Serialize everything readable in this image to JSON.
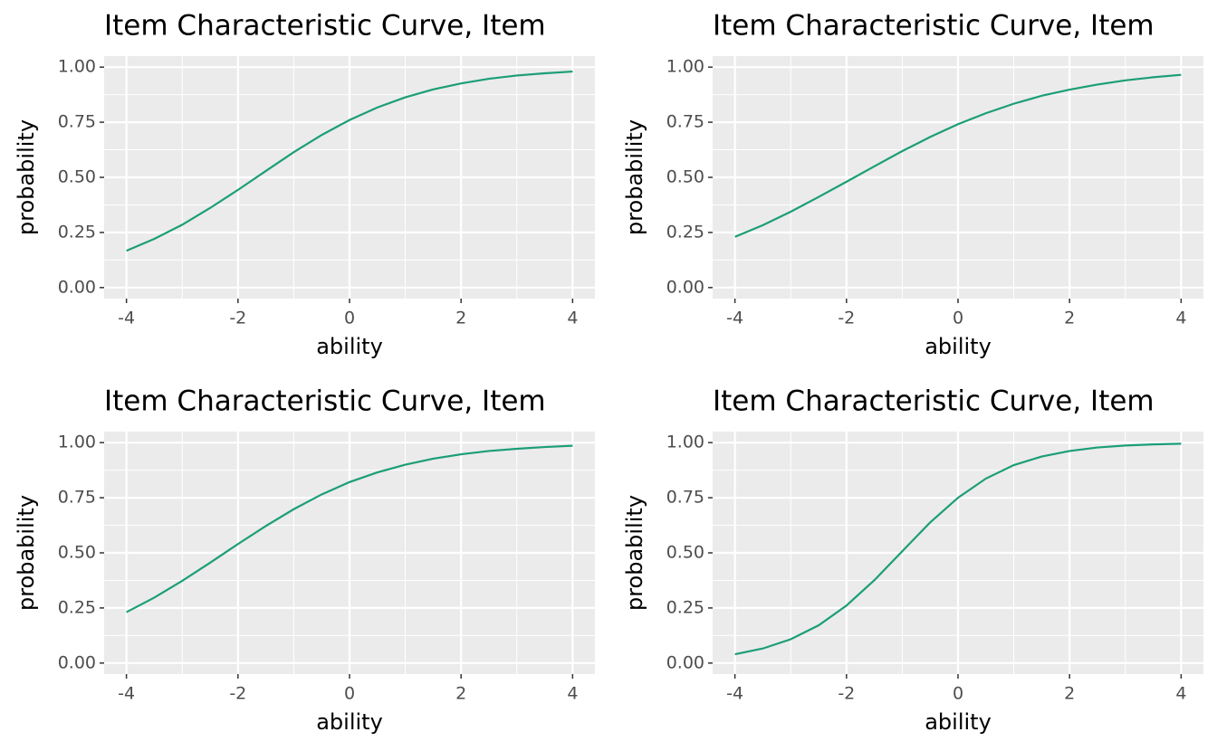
{
  "chart_data": [
    {
      "type": "line",
      "title": "Item Characteristic Curve, Item",
      "x_label": "ability",
      "y_label": "probability",
      "x": [
        -4,
        -3.5,
        -3,
        -2.5,
        -2,
        -1.5,
        -1,
        -0.5,
        0,
        0.5,
        1,
        1.5,
        2,
        2.5,
        3,
        3.5,
        4
      ],
      "series": [
        {
          "color": "#1b9e77",
          "values": [
            0.167,
            0.221,
            0.285,
            0.361,
            0.443,
            0.529,
            0.614,
            0.692,
            0.76,
            0.817,
            0.863,
            0.899,
            0.926,
            0.947,
            0.962,
            0.972,
            0.98
          ]
        }
      ],
      "xlim": [
        -4.4,
        4.4
      ],
      "xticks": [
        -4,
        -2,
        0,
        2,
        4
      ],
      "ylim": [
        -0.05,
        1.05
      ],
      "yticks": [
        {
          "value": 0,
          "label": "0.00"
        },
        {
          "value": 0.25,
          "label": "0.25"
        },
        {
          "value": 0.5,
          "label": "0.50"
        },
        {
          "value": 0.75,
          "label": "0.75"
        },
        {
          "value": 1,
          "label": "1.00"
        }
      ],
      "grid": true
    },
    {
      "type": "line",
      "title": "Item Characteristic Curve, Item",
      "x_label": "ability",
      "y_label": "probability",
      "x": [
        -4,
        -3.5,
        -3,
        -2.5,
        -2,
        -1.5,
        -1,
        -0.5,
        0,
        0.5,
        1,
        1.5,
        2,
        2.5,
        3,
        3.5,
        4
      ],
      "series": [
        {
          "color": "#1b9e77",
          "values": [
            0.23,
            0.283,
            0.344,
            0.411,
            0.48,
            0.55,
            0.619,
            0.683,
            0.741,
            0.791,
            0.834,
            0.87,
            0.898,
            0.921,
            0.94,
            0.954,
            0.965
          ]
        }
      ],
      "xlim": [
        -4.4,
        4.4
      ],
      "xticks": [
        -4,
        -2,
        0,
        2,
        4
      ],
      "ylim": [
        -0.05,
        1.05
      ],
      "yticks": [
        {
          "value": 0,
          "label": "0.00"
        },
        {
          "value": 0.25,
          "label": "0.25"
        },
        {
          "value": 0.5,
          "label": "0.50"
        },
        {
          "value": 0.75,
          "label": "0.75"
        },
        {
          "value": 1,
          "label": "1.00"
        }
      ],
      "grid": true
    },
    {
      "type": "line",
      "title": "Item Characteristic Curve, Item",
      "x_label": "ability",
      "y_label": "probability",
      "x": [
        -4,
        -3.5,
        -3,
        -2.5,
        -2,
        -1.5,
        -1,
        -0.5,
        0,
        0.5,
        1,
        1.5,
        2,
        2.5,
        3,
        3.5,
        4
      ],
      "series": [
        {
          "color": "#1b9e77",
          "values": [
            0.231,
            0.297,
            0.373,
            0.455,
            0.54,
            0.622,
            0.698,
            0.765,
            0.821,
            0.865,
            0.9,
            0.927,
            0.947,
            0.962,
            0.972,
            0.98,
            0.986
          ]
        }
      ],
      "xlim": [
        -4.4,
        4.4
      ],
      "xticks": [
        -4,
        -2,
        0,
        2,
        4
      ],
      "ylim": [
        -0.05,
        1.05
      ],
      "yticks": [
        {
          "value": 0,
          "label": "0.00"
        },
        {
          "value": 0.25,
          "label": "0.25"
        },
        {
          "value": 0.5,
          "label": "0.50"
        },
        {
          "value": 0.75,
          "label": "0.75"
        },
        {
          "value": 1,
          "label": "1.00"
        }
      ],
      "grid": true
    },
    {
      "type": "line",
      "title": "Item Characteristic Curve, Item",
      "x_label": "ability",
      "y_label": "probability",
      "x": [
        -4,
        -3.5,
        -3,
        -2.5,
        -2,
        -1.5,
        -1,
        -0.5,
        0,
        0.5,
        1,
        1.5,
        2,
        2.5,
        3,
        3.5,
        4
      ],
      "series": [
        {
          "color": "#1b9e77",
          "values": [
            0.04,
            0.066,
            0.108,
            0.171,
            0.261,
            0.376,
            0.507,
            0.638,
            0.75,
            0.837,
            0.898,
            0.937,
            0.962,
            0.978,
            0.987,
            0.992,
            0.995
          ]
        }
      ],
      "xlim": [
        -4.4,
        4.4
      ],
      "xticks": [
        -4,
        -2,
        0,
        2,
        4
      ],
      "ylim": [
        -0.05,
        1.05
      ],
      "yticks": [
        {
          "value": 0,
          "label": "0.00"
        },
        {
          "value": 0.25,
          "label": "0.25"
        },
        {
          "value": 0.5,
          "label": "0.50"
        },
        {
          "value": 0.75,
          "label": "0.75"
        },
        {
          "value": 1,
          "label": "1.00"
        }
      ],
      "grid": true
    }
  ]
}
